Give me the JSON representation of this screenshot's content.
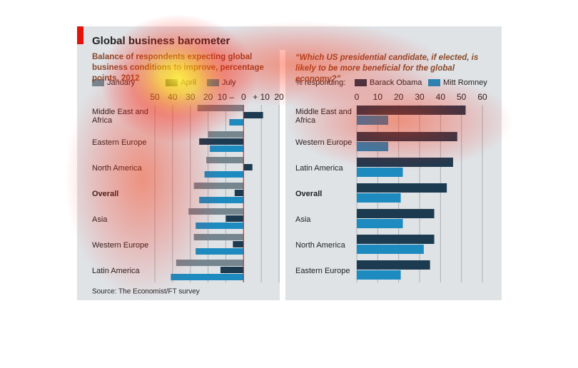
{
  "title": "Global business barometer",
  "source": "Source: The Economist/FT survey",
  "chart_data": [
    {
      "type": "hbar",
      "subtitle": "Balance of respondents expecting global business conditions to improve, percentage points, 2012",
      "categories": [
        "Middle East and Africa",
        "Eastern Europe",
        "North America",
        "Overall",
        "Asia",
        "Western Europe",
        "Latin America"
      ],
      "series": [
        {
          "name": "January",
          "color": "#76868f",
          "values": [
            -26,
            -20,
            -21,
            -28,
            -31,
            -28,
            -38
          ]
        },
        {
          "name": "April",
          "color": "#1c3b50",
          "values": [
            11,
            -25,
            5,
            -5,
            -10,
            -6,
            -13
          ]
        },
        {
          "name": "July",
          "color": "#1d8bbf",
          "values": [
            -8,
            -19,
            -22,
            -25,
            -27,
            -27,
            -41
          ]
        }
      ],
      "xlim": [
        -50,
        20
      ],
      "xticks": [
        {
          "value": -50,
          "label": "50"
        },
        {
          "value": -40,
          "label": "40"
        },
        {
          "value": -30,
          "label": "30"
        },
        {
          "value": -20,
          "label": "20"
        },
        {
          "value": -10,
          "label": "10 –"
        },
        0,
        {
          "value": 10,
          "label": "+ 10"
        },
        20
      ],
      "grid": true
    },
    {
      "type": "hbar",
      "subtitle": "“Which US presidential candidate, if elected, is likely to be more beneficial for the global economy?”",
      "legend_title": "% responding:",
      "categories": [
        "Middle East and Africa",
        "Western Europe",
        "Latin America",
        "Overall",
        "Asia",
        "North America",
        "Eastern Europe"
      ],
      "series": [
        {
          "name": "Barack Obama",
          "color": "#1c3b50",
          "values": [
            52,
            48,
            46,
            43,
            37,
            37,
            35
          ]
        },
        {
          "name": "Mitt Romney",
          "color": "#1d8bbf",
          "values": [
            15,
            15,
            22,
            21,
            22,
            32,
            21
          ]
        }
      ],
      "xlim": [
        0,
        60
      ],
      "xticks": [
        0,
        10,
        20,
        30,
        40,
        50,
        60
      ],
      "grid": true
    }
  ]
}
